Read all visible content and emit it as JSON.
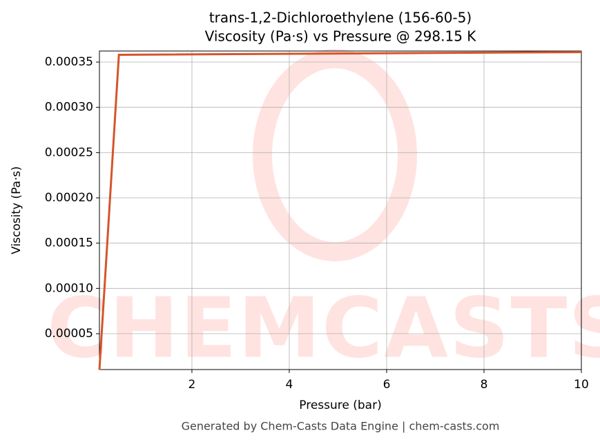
{
  "chart_data": {
    "type": "line",
    "title": "trans-1,2-Dichloroethylene (156-60-5)",
    "subtitle": "Viscosity (Pa·s) vs Pressure @ 298.15 K",
    "x_label": "Pressure (bar)",
    "y_label": "Viscosity (Pa·s)",
    "footer": "Generated by Chem-Casts Data Engine | chem-casts.com",
    "watermark": "CHEMCASTS",
    "x": [
      0.1,
      0.5,
      10
    ],
    "series": [
      {
        "name": "Viscosity",
        "color": "#d4552a",
        "values": [
          1e-05,
          0.000358,
          0.000361
        ]
      }
    ],
    "xlim": [
      0.1,
      10
    ],
    "xticks": [
      2,
      4,
      6,
      8,
      10
    ],
    "ylim": [
      1.04e-05,
      0.0003622
    ],
    "yticks": [
      5e-05,
      {
        "value": 0.0001,
        "label": "0.00010"
      },
      0.00015,
      {
        "value": 0.0002,
        "label": "0.00020"
      },
      0.00025,
      {
        "value": 0.0003,
        "label": "0.00030"
      },
      0.00035
    ],
    "grid": true
  }
}
